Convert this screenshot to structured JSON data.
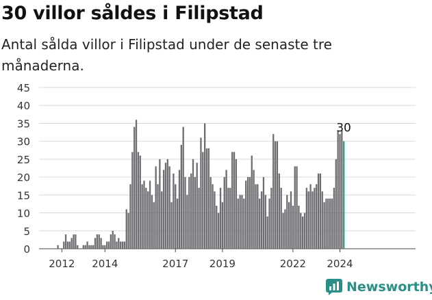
{
  "title": "30 villor såldes i Filipstad",
  "subtitle": "Antal sålda villor i Filipstad under de senaste tre månaderna.",
  "brand": "Newsworthy",
  "colors": {
    "bar": "#6e6d72",
    "highlight": "#2a9d8f",
    "grid": "#d9d9d9",
    "brand": "#2a8f86"
  },
  "chart_data": {
    "type": "bar",
    "ylim": [
      0,
      45
    ],
    "yticks": [
      0,
      5,
      10,
      15,
      20,
      25,
      30,
      35,
      40,
      45
    ],
    "xtick_labels": [
      {
        "label": "2012",
        "index": 2
      },
      {
        "label": "2014",
        "index": 24
      },
      {
        "label": "2017",
        "index": 60
      },
      {
        "label": "2019",
        "index": 84
      },
      {
        "label": "2022",
        "index": 120
      },
      {
        "label": "2024",
        "index": 144
      }
    ],
    "grid": true,
    "highlight_label": "30",
    "values": [
      1,
      0,
      0,
      2,
      4,
      2,
      2,
      3,
      4,
      4,
      1,
      0,
      0,
      1,
      1,
      2,
      1,
      1,
      1,
      3,
      4,
      4,
      3,
      1,
      1,
      2,
      2,
      4,
      5,
      4,
      2,
      3,
      2,
      2,
      2,
      11,
      10,
      18,
      27,
      34,
      36,
      27,
      26,
      18,
      19,
      17,
      16,
      19,
      15,
      13,
      23,
      18,
      25,
      16,
      22,
      24,
      25,
      23,
      13,
      21,
      18,
      14,
      22,
      29,
      34,
      20,
      15,
      20,
      21,
      25,
      20,
      24,
      17,
      31,
      27,
      35,
      28,
      28,
      20,
      18,
      16,
      12,
      10,
      17,
      13,
      20,
      22,
      17,
      17,
      27,
      27,
      25,
      14,
      15,
      15,
      14,
      19,
      20,
      20,
      26,
      22,
      18,
      18,
      14,
      16,
      20,
      15,
      9,
      14,
      17,
      32,
      30,
      30,
      21,
      17,
      10,
      11,
      15,
      13,
      16,
      12,
      23,
      23,
      12,
      10,
      9,
      10,
      17,
      16,
      18,
      16,
      17,
      18,
      21,
      21,
      16,
      13,
      14,
      14,
      14,
      14,
      17,
      25,
      33,
      32,
      33,
      30
    ]
  }
}
